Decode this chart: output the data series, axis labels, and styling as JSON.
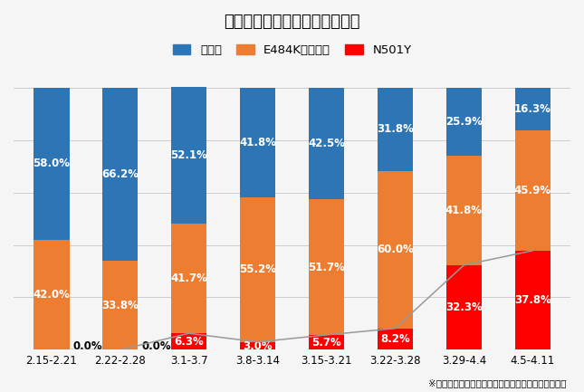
{
  "title": "都内変異株の発生割合（推移）",
  "footnote": "※都健安研におけるスクリーニング結果をもとに推計",
  "categories": [
    "2.15-2.21",
    "2.22-2.28",
    "3.1-3.7",
    "3.8-3.14",
    "3.15-3.21",
    "3.22-3.28",
    "3.29-4.4",
    "4.5-4.11"
  ],
  "legend_labels": [
    "従来株",
    "E484K単独変異",
    "N501Y"
  ],
  "colors": [
    "#2e75b6",
    "#ed7d31",
    "#ff0000"
  ],
  "n501y": [
    0.0,
    0.0,
    6.3,
    3.0,
    5.7,
    8.2,
    32.3,
    37.8
  ],
  "e484k": [
    42.0,
    33.8,
    41.7,
    55.2,
    51.7,
    60.0,
    41.8,
    45.9
  ],
  "jurai": [
    58.0,
    66.2,
    52.1,
    41.8,
    42.5,
    31.8,
    25.9,
    16.3
  ],
  "background_color": "#f5f5f5",
  "grid_color": "#cccccc",
  "line_color": "#999999",
  "title_fontsize": 13,
  "label_fontsize": 8.5,
  "tick_fontsize": 8.5,
  "legend_fontsize": 9.5,
  "bar_width": 0.52
}
